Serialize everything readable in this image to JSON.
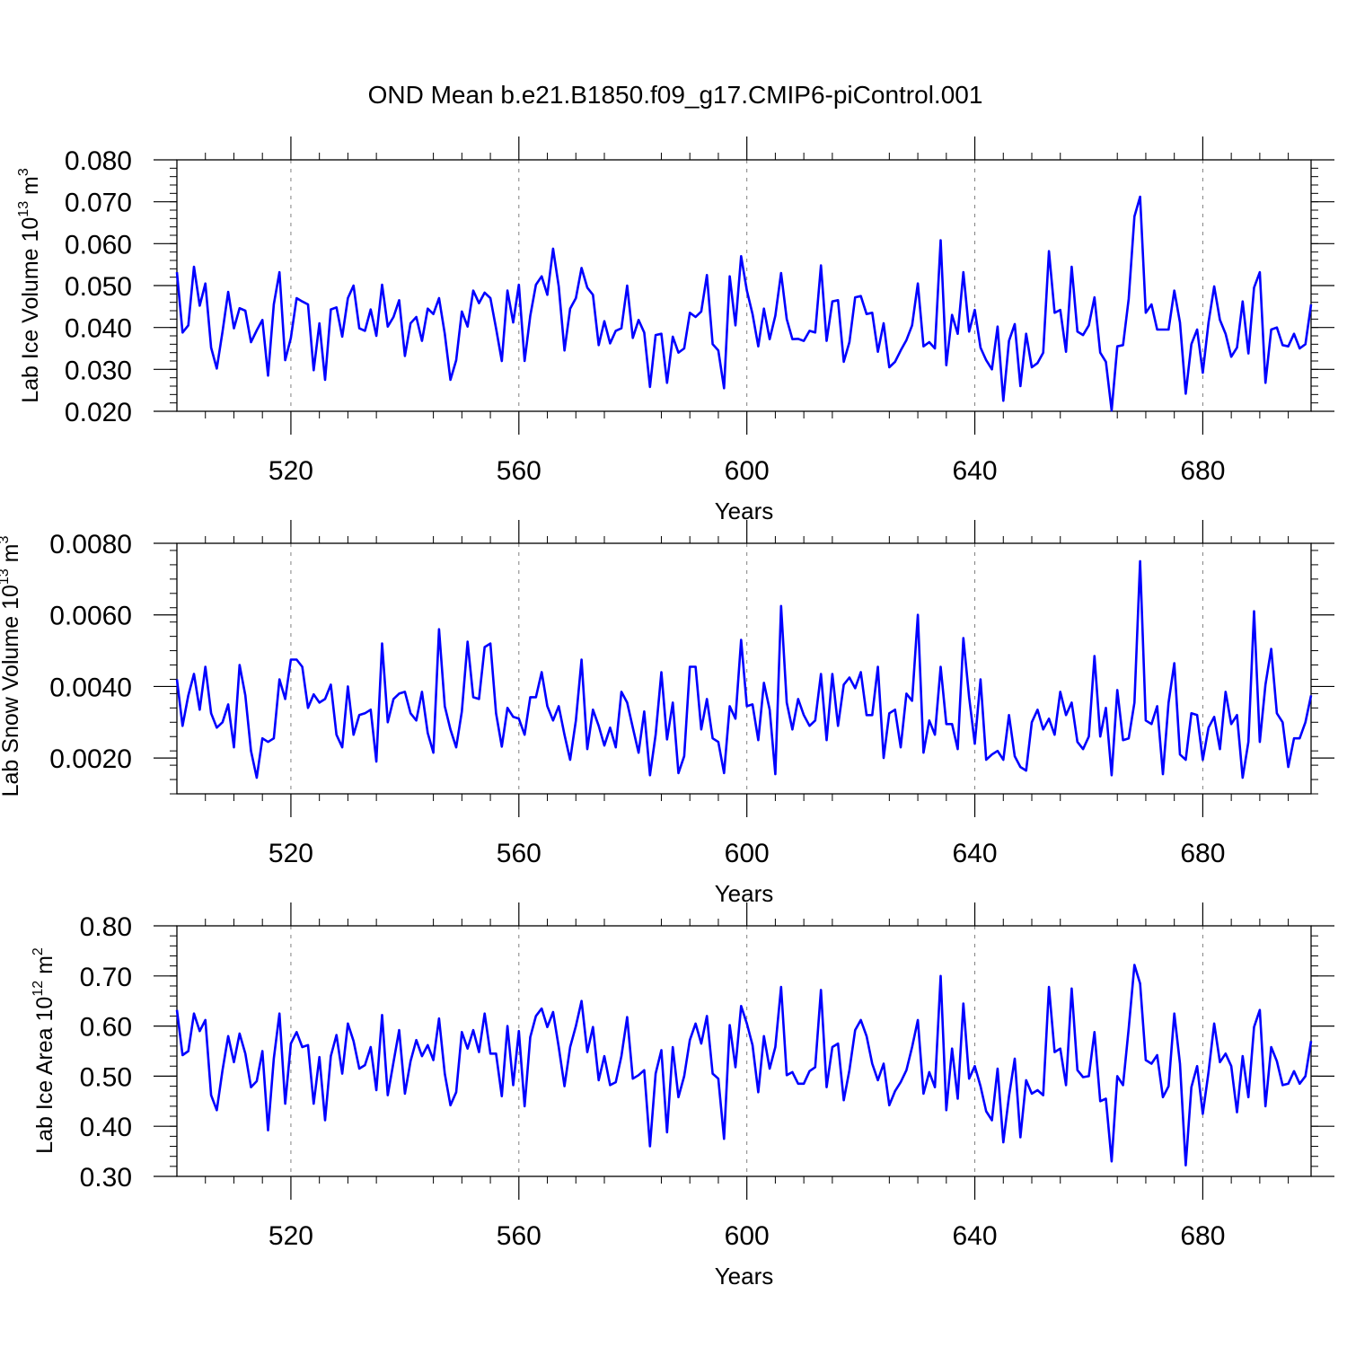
{
  "title": "OND Mean b.e21.B1850.f09_g17.CMIP6-piControl.001",
  "colors": {
    "series": "#0000ff",
    "frame": "#000000",
    "grid": "#808080"
  },
  "chart_data": [
    {
      "type": "line",
      "ylabel": "Lab Ice Volume 10",
      "ylabel_exp": "13",
      "ylabel_unit": " m",
      "ylabel_unit_exp": "3",
      "xlabel": "Years",
      "xlim": [
        500,
        699
      ],
      "ylim": [
        0.02,
        0.08
      ],
      "xticks": [
        520,
        560,
        600,
        640,
        680
      ],
      "xtick_labels": [
        "520",
        "560",
        "600",
        "640",
        "680"
      ],
      "yticks": [
        0.02,
        0.03,
        0.04,
        0.05,
        0.06,
        0.07,
        0.08
      ],
      "ytick_labels": [
        "0.020",
        "0.030",
        "0.040",
        "0.050",
        "0.060",
        "0.070",
        "0.080"
      ],
      "grid": "vertical dashed at major x ticks",
      "x_start": 500,
      "values": [
        0.0532,
        0.0388,
        0.0405,
        0.0545,
        0.0452,
        0.0505,
        0.0352,
        0.0302,
        0.039,
        0.0485,
        0.0398,
        0.0446,
        0.044,
        0.0365,
        0.0393,
        0.0418,
        0.0285,
        0.0455,
        0.0532,
        0.0322,
        0.0375,
        0.047,
        0.0462,
        0.0455,
        0.0298,
        0.041,
        0.0275,
        0.0443,
        0.0448,
        0.0378,
        0.047,
        0.05,
        0.0398,
        0.0392,
        0.0443,
        0.038,
        0.0502,
        0.0402,
        0.0425,
        0.0465,
        0.0332,
        0.041,
        0.0425,
        0.0368,
        0.0445,
        0.0432,
        0.047,
        0.0385,
        0.0275,
        0.0322,
        0.0438,
        0.0402,
        0.0488,
        0.0458,
        0.0483,
        0.047,
        0.0398,
        0.032,
        0.0488,
        0.0412,
        0.0502,
        0.032,
        0.0428,
        0.0502,
        0.0522,
        0.0478,
        0.0588,
        0.0498,
        0.0345,
        0.0445,
        0.047,
        0.0542,
        0.0495,
        0.0478,
        0.0358,
        0.0415,
        0.0362,
        0.0392,
        0.0398,
        0.05,
        0.0375,
        0.0418,
        0.0388,
        0.0258,
        0.0382,
        0.0385,
        0.0268,
        0.0378,
        0.034,
        0.035,
        0.0435,
        0.0425,
        0.0438,
        0.0525,
        0.036,
        0.0345,
        0.0255,
        0.0522,
        0.0405,
        0.057,
        0.0488,
        0.0432,
        0.0355,
        0.0445,
        0.0372,
        0.0428,
        0.053,
        0.042,
        0.0372,
        0.0373,
        0.0368,
        0.0392,
        0.0388,
        0.0548,
        0.0368,
        0.0462,
        0.0465,
        0.0318,
        0.0365,
        0.0472,
        0.0475,
        0.0432,
        0.0435,
        0.0342,
        0.041,
        0.0305,
        0.0318,
        0.0345,
        0.037,
        0.0405,
        0.0505,
        0.0355,
        0.0365,
        0.035,
        0.0608,
        0.031,
        0.043,
        0.0385,
        0.0532,
        0.039,
        0.0442,
        0.0352,
        0.0322,
        0.03,
        0.0402,
        0.0225,
        0.0368,
        0.0408,
        0.026,
        0.0385,
        0.0305,
        0.0315,
        0.034,
        0.0582,
        0.0435,
        0.0442,
        0.0342,
        0.0545,
        0.039,
        0.0382,
        0.0405,
        0.0472,
        0.034,
        0.0318,
        0.0202,
        0.0355,
        0.0358,
        0.0468,
        0.0665,
        0.0712,
        0.0435,
        0.0455,
        0.0395,
        0.0395,
        0.0395,
        0.0488,
        0.0412,
        0.0242,
        0.036,
        0.0395,
        0.0292,
        0.0412,
        0.0498,
        0.0418,
        0.0385,
        0.033,
        0.0352,
        0.0462,
        0.0338,
        0.0495,
        0.0532,
        0.0268,
        0.0395,
        0.04,
        0.0358,
        0.0355,
        0.0385,
        0.035,
        0.036,
        0.0455
      ]
    },
    {
      "type": "line",
      "ylabel": "Lab Snow Volume 10",
      "ylabel_exp": "13",
      "ylabel_unit": " m",
      "ylabel_unit_exp": "3",
      "xlabel": "Years",
      "xlim": [
        500,
        699
      ],
      "ylim": [
        0.001,
        0.008
      ],
      "xticks": [
        520,
        560,
        600,
        640,
        680
      ],
      "xtick_labels": [
        "520",
        "560",
        "600",
        "640",
        "680"
      ],
      "yticks": [
        0.002,
        0.004,
        0.006,
        0.008
      ],
      "ytick_labels": [
        "0.0020",
        "0.0040",
        "0.0060",
        "0.0080"
      ],
      "grid": "vertical dashed at major x ticks",
      "x_start": 500,
      "values": [
        0.0042,
        0.0029,
        0.00375,
        0.00435,
        0.00335,
        0.00455,
        0.00325,
        0.00285,
        0.003,
        0.0035,
        0.0023,
        0.0046,
        0.00375,
        0.0022,
        0.00145,
        0.00255,
        0.00245,
        0.00255,
        0.0042,
        0.00365,
        0.00475,
        0.00475,
        0.00455,
        0.0034,
        0.00378,
        0.00355,
        0.00365,
        0.00405,
        0.00265,
        0.0023,
        0.004,
        0.00265,
        0.0032,
        0.00325,
        0.00335,
        0.0019,
        0.0052,
        0.003,
        0.00365,
        0.0038,
        0.00385,
        0.00325,
        0.00305,
        0.00385,
        0.0027,
        0.00215,
        0.0056,
        0.00345,
        0.0028,
        0.0023,
        0.0033,
        0.00525,
        0.0037,
        0.00365,
        0.0051,
        0.0052,
        0.00325,
        0.00232,
        0.0034,
        0.00315,
        0.0031,
        0.00265,
        0.0037,
        0.0037,
        0.0044,
        0.00345,
        0.00305,
        0.00345,
        0.00265,
        0.00195,
        0.00305,
        0.00475,
        0.00225,
        0.00335,
        0.0029,
        0.00235,
        0.00285,
        0.0023,
        0.00385,
        0.00355,
        0.00285,
        0.00215,
        0.0033,
        0.00152,
        0.00265,
        0.0044,
        0.00252,
        0.00355,
        0.00158,
        0.00205,
        0.00455,
        0.00455,
        0.0028,
        0.00365,
        0.00255,
        0.00245,
        0.00158,
        0.00345,
        0.0031,
        0.0053,
        0.00345,
        0.0035,
        0.0025,
        0.0041,
        0.00335,
        0.00155,
        0.00625,
        0.00355,
        0.0028,
        0.00365,
        0.0032,
        0.0029,
        0.00305,
        0.00435,
        0.0025,
        0.00435,
        0.0029,
        0.00405,
        0.00425,
        0.00395,
        0.0044,
        0.0032,
        0.0032,
        0.00455,
        0.002,
        0.00325,
        0.00335,
        0.0023,
        0.0038,
        0.0036,
        0.006,
        0.00215,
        0.00305,
        0.00265,
        0.00455,
        0.00295,
        0.00295,
        0.00225,
        0.00535,
        0.0037,
        0.0024,
        0.0042,
        0.00195,
        0.0021,
        0.0022,
        0.00195,
        0.0032,
        0.00205,
        0.00175,
        0.00165,
        0.003,
        0.00335,
        0.0028,
        0.0031,
        0.00265,
        0.00385,
        0.0032,
        0.00355,
        0.00245,
        0.00225,
        0.0026,
        0.00485,
        0.0026,
        0.0034,
        0.00152,
        0.0039,
        0.0025,
        0.00255,
        0.00355,
        0.0075,
        0.00305,
        0.00295,
        0.00345,
        0.00155,
        0.00355,
        0.00465,
        0.0021,
        0.00195,
        0.00325,
        0.0032,
        0.00195,
        0.00285,
        0.00315,
        0.00225,
        0.00385,
        0.00295,
        0.0032,
        0.00145,
        0.00245,
        0.0061,
        0.00245,
        0.00405,
        0.00505,
        0.00325,
        0.003,
        0.00175,
        0.00255,
        0.00255,
        0.003,
        0.00375
      ]
    },
    {
      "type": "line",
      "ylabel": "Lab Ice Area 10",
      "ylabel_exp": "12",
      "ylabel_unit": " m",
      "ylabel_unit_exp": "2",
      "xlabel": "Years",
      "xlim": [
        500,
        699
      ],
      "ylim": [
        0.3,
        0.8
      ],
      "xticks": [
        520,
        560,
        600,
        640,
        680
      ],
      "xtick_labels": [
        "520",
        "560",
        "600",
        "640",
        "680"
      ],
      "yticks": [
        0.3,
        0.4,
        0.5,
        0.6,
        0.7,
        0.8
      ],
      "ytick_labels": [
        "0.30",
        "0.40",
        "0.50",
        "0.60",
        "0.70",
        "0.80"
      ],
      "grid": "vertical dashed at major x ticks",
      "x_start": 500,
      "values": [
        0.632,
        0.542,
        0.55,
        0.625,
        0.59,
        0.612,
        0.462,
        0.432,
        0.512,
        0.58,
        0.528,
        0.585,
        0.545,
        0.478,
        0.49,
        0.55,
        0.392,
        0.535,
        0.625,
        0.445,
        0.565,
        0.588,
        0.558,
        0.562,
        0.445,
        0.538,
        0.412,
        0.54,
        0.582,
        0.505,
        0.605,
        0.57,
        0.515,
        0.522,
        0.558,
        0.472,
        0.622,
        0.462,
        0.528,
        0.592,
        0.465,
        0.53,
        0.572,
        0.54,
        0.562,
        0.532,
        0.615,
        0.505,
        0.442,
        0.468,
        0.588,
        0.555,
        0.592,
        0.548,
        0.625,
        0.545,
        0.545,
        0.46,
        0.6,
        0.482,
        0.59,
        0.44,
        0.578,
        0.62,
        0.635,
        0.598,
        0.628,
        0.558,
        0.48,
        0.558,
        0.6,
        0.65,
        0.548,
        0.598,
        0.492,
        0.54,
        0.482,
        0.488,
        0.54,
        0.618,
        0.495,
        0.502,
        0.512,
        0.36,
        0.505,
        0.552,
        0.388,
        0.558,
        0.458,
        0.5,
        0.572,
        0.605,
        0.565,
        0.62,
        0.505,
        0.495,
        0.375,
        0.602,
        0.518,
        0.64,
        0.605,
        0.562,
        0.468,
        0.58,
        0.515,
        0.558,
        0.678,
        0.502,
        0.508,
        0.485,
        0.485,
        0.51,
        0.518,
        0.672,
        0.478,
        0.558,
        0.565,
        0.452,
        0.512,
        0.592,
        0.612,
        0.58,
        0.525,
        0.492,
        0.525,
        0.442,
        0.47,
        0.488,
        0.512,
        0.558,
        0.612,
        0.465,
        0.508,
        0.478,
        0.7,
        0.432,
        0.555,
        0.455,
        0.645,
        0.495,
        0.52,
        0.48,
        0.43,
        0.412,
        0.515,
        0.368,
        0.46,
        0.535,
        0.378,
        0.492,
        0.465,
        0.472,
        0.462,
        0.678,
        0.548,
        0.555,
        0.482,
        0.675,
        0.512,
        0.498,
        0.5,
        0.588,
        0.45,
        0.455,
        0.33,
        0.5,
        0.482,
        0.595,
        0.722,
        0.685,
        0.532,
        0.525,
        0.542,
        0.458,
        0.48,
        0.625,
        0.525,
        0.322,
        0.478,
        0.52,
        0.425,
        0.508,
        0.605,
        0.528,
        0.545,
        0.52,
        0.428,
        0.54,
        0.458,
        0.598,
        0.632,
        0.44,
        0.558,
        0.53,
        0.482,
        0.485,
        0.51,
        0.485,
        0.5,
        0.57
      ]
    }
  ]
}
